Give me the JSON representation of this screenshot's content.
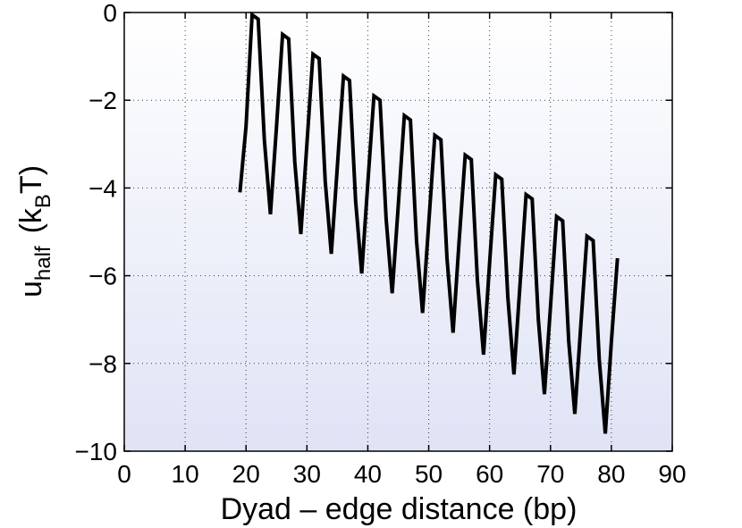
{
  "chart_data": {
    "type": "line",
    "xlabel": "Dyad – edge distance (bp)",
    "ylabel_main": "u",
    "ylabel_sub": "half",
    "ylabel_unit_open": "(k",
    "ylabel_unit_sub": "B",
    "ylabel_unit_close": "T)",
    "xlim": [
      0,
      90
    ],
    "ylim": [
      -10,
      0
    ],
    "xticks": [
      0,
      10,
      20,
      30,
      40,
      50,
      60,
      70,
      80,
      90
    ],
    "xtick_labels": [
      "0",
      "10",
      "20",
      "30",
      "40",
      "50",
      "60",
      "70",
      "80",
      "90"
    ],
    "yticks": [
      0,
      -2,
      -4,
      -6,
      -8,
      -10
    ],
    "ytick_labels": [
      "0",
      "−2",
      "−4",
      "−6",
      "−8",
      "−10"
    ],
    "grid": true,
    "background_gradient": [
      "#ffffff",
      "#dfe3f5"
    ],
    "series": [
      {
        "color": "#000000",
        "x": [
          19,
          20,
          21,
          22,
          23,
          24,
          25,
          26,
          27,
          28,
          29,
          30,
          31,
          32,
          33,
          34,
          35,
          36,
          37,
          38,
          39,
          40,
          41,
          42,
          43,
          44,
          45,
          46,
          47,
          48,
          49,
          50,
          51,
          52,
          53,
          54,
          55,
          56,
          57,
          58,
          59,
          60,
          61,
          62,
          63,
          64,
          65,
          66,
          67,
          68,
          69,
          70,
          71,
          72,
          73,
          74,
          75,
          76,
          77,
          78,
          79,
          80,
          81
        ],
        "y": [
          -4.1,
          -2.6,
          -0.05,
          -0.15,
          -2.9,
          -4.6,
          -2.6,
          -0.5,
          -0.6,
          -3.4,
          -5.05,
          -3.0,
          -0.95,
          -1.05,
          -3.85,
          -5.5,
          -3.5,
          -1.45,
          -1.55,
          -4.3,
          -5.95,
          -3.9,
          -1.9,
          -2.0,
          -4.7,
          -6.4,
          -4.4,
          -2.35,
          -2.45,
          -5.2,
          -6.85,
          -4.8,
          -2.8,
          -2.9,
          -5.6,
          -7.3,
          -5.2,
          -3.25,
          -3.35,
          -6.1,
          -7.8,
          -5.7,
          -3.7,
          -3.8,
          -6.5,
          -8.25,
          -6.2,
          -4.15,
          -4.25,
          -7.0,
          -8.7,
          -6.7,
          -4.65,
          -4.75,
          -7.5,
          -9.15,
          -7.1,
          -5.1,
          -5.2,
          -7.9,
          -9.6,
          -7.5,
          -5.6
        ]
      }
    ]
  }
}
